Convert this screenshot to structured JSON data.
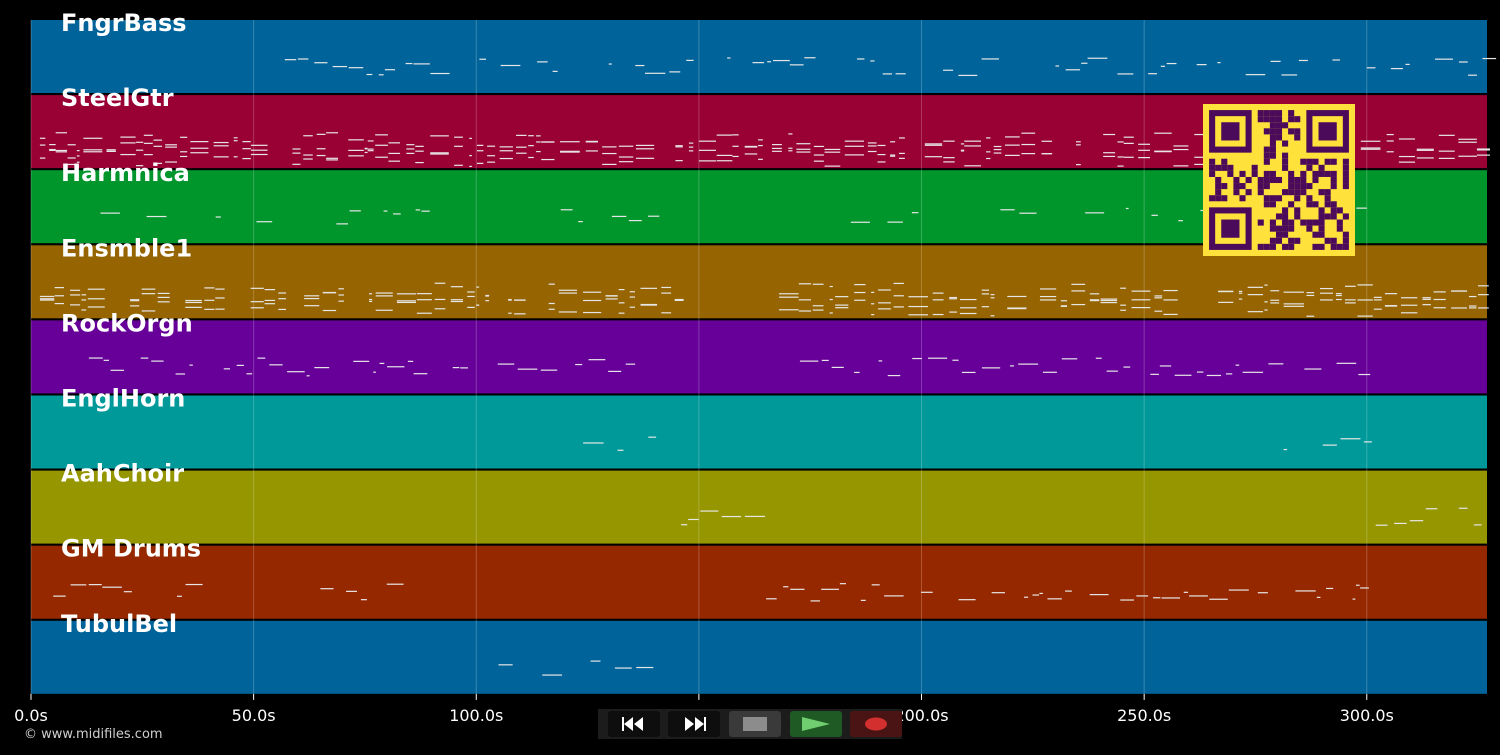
{
  "tracks": [
    {
      "name": "FngrBass",
      "color": "#00649a"
    },
    {
      "name": "SteelGtr",
      "color": "#990033"
    },
    {
      "name": "Harmnica",
      "color": "#00962c"
    },
    {
      "name": "Ensmble1",
      "color": "#966400"
    },
    {
      "name": "RockOrgn",
      "color": "#660099"
    },
    {
      "name": "EnglHorn",
      "color": "#009999"
    },
    {
      "name": "AahChoir",
      "color": "#969600"
    },
    {
      "name": "GM Drums",
      "color": "#962800"
    },
    {
      "name": "TubulBel",
      "color": "#00649a"
    }
  ],
  "timeline": {
    "ticks_seconds": [
      0,
      50,
      100,
      150,
      200,
      250,
      300
    ],
    "tick_labels": [
      "0.0s",
      "50.0s",
      "100.0s",
      "150.0s",
      "200.0s",
      "250.0s",
      "300.0s"
    ],
    "duration_seconds": 327
  },
  "footer": {
    "copyright": "© www.midifiles.com"
  },
  "transport": {
    "buttons": [
      {
        "name": "rewind-button",
        "icon": "rewind-icon",
        "color": "#ffffff"
      },
      {
        "name": "fast-forward-button",
        "icon": "fast-forward-icon",
        "color": "#ffffff"
      },
      {
        "name": "stop-button",
        "icon": "stop-icon",
        "color": "#8c8c8c"
      },
      {
        "name": "play-button",
        "icon": "play-icon",
        "color": "#4caf50"
      },
      {
        "name": "record-button",
        "icon": "record-icon",
        "color": "#d32f2f"
      }
    ]
  },
  "qr_code": {
    "foreground": "#4b0a5a",
    "background": "#ffe13c"
  }
}
